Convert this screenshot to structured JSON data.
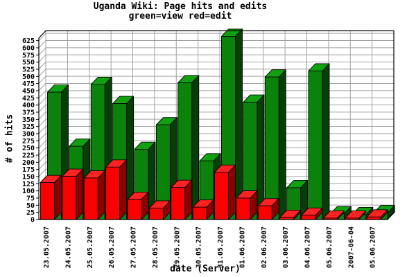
{
  "chart_data": {
    "type": "bar",
    "style": "3d",
    "title": "Uganda Wiki: Page hits and edits",
    "subtitle": "green=view red=edit",
    "xlabel": "date (Server)",
    "ylabel": "# of hits",
    "categories": [
      "23.05.2007",
      "24.05.2007",
      "25.05.2007",
      "26.05.2007",
      "27.05.2007",
      "28.05.2007",
      "29.05.2007",
      "30.05.2007",
      "31.05.2007",
      "01.06.2007",
      "02.06.2007",
      "03.06.2007",
      "04.06.2007",
      "05.06.2007",
      "2007-06-04",
      "05.06.2007"
    ],
    "series": [
      {
        "name": "view",
        "color": "green",
        "values": [
          445,
          256,
          472,
          405,
          245,
          331,
          478,
          205,
          640,
          410,
          498,
          111,
          519,
          20,
          17,
          24
        ]
      },
      {
        "name": "edit",
        "color": "red",
        "values": [
          129,
          151,
          145,
          183,
          70,
          40,
          112,
          43,
          165,
          75,
          48,
          7,
          15,
          5,
          5,
          9
        ]
      }
    ],
    "ylim": [
      0,
      650
    ],
    "ytick_step": 25,
    "ytick_max": 625,
    "grid": true,
    "legend_position": "in-subtitle",
    "colors": {
      "view_front": "#0b830b",
      "view_top": "#10a010",
      "view_side": "#053f05",
      "edit_front": "#fa0000",
      "edit_top": "#ff2222",
      "edit_side": "#8c0000",
      "grid": "#a0a0a0",
      "axis": "#000000",
      "background": "#ffffff"
    }
  }
}
